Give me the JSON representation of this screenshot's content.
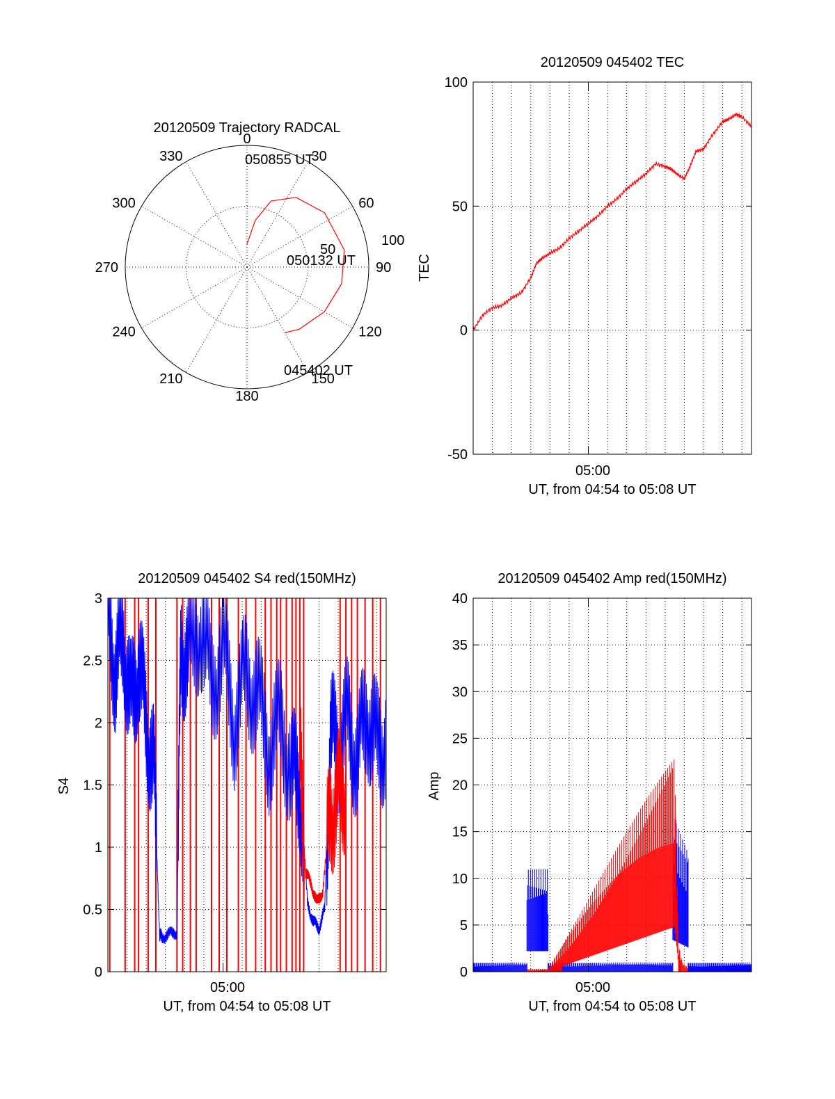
{
  "colors": {
    "red": "#ff0000",
    "blue": "#0000ff",
    "axis": "#000000"
  },
  "chart_data": [
    {
      "id": "polar",
      "type": "polar-trajectory",
      "title": "20120509 Trajectory RADCAL",
      "azimuth_labels": [
        "0",
        "30",
        "60",
        "90",
        "120",
        "150",
        "180",
        "210",
        "240",
        "270",
        "300",
        "330"
      ],
      "radius_labels": [
        "50",
        "100"
      ],
      "trajectory": {
        "series_color": "red",
        "points_az_el": [
          [
            0,
            73
          ],
          [
            10,
            55
          ],
          [
            20,
            38
          ],
          [
            35,
            27
          ],
          [
            55,
            20
          ],
          [
            80,
            17
          ],
          [
            100,
            19
          ],
          [
            120,
            24
          ],
          [
            140,
            30
          ],
          [
            150,
            34
          ]
        ]
      },
      "annotations": [
        {
          "text": "050855 UT",
          "az": 0,
          "el": 73
        },
        {
          "text": "050132 UT",
          "az": 80,
          "el": 17
        },
        {
          "text": "045402 UT",
          "az": 150,
          "el": 34
        }
      ]
    },
    {
      "id": "tec",
      "type": "line",
      "title": "20120509 045402 TEC",
      "ylabel": "TEC",
      "xlabel": "UT, from 04:54 to 05:08 UT",
      "xtick_label": "05:00",
      "ylim": [
        -50,
        100
      ],
      "yticks": [
        "100",
        "50",
        "0",
        "-50"
      ],
      "xlim_minutes": [
        0,
        14.5
      ],
      "grid": true,
      "series": [
        {
          "color": "red",
          "x_minutes": [
            0,
            0.5,
            1,
            1.5,
            2,
            2.5,
            3,
            3.3,
            3.6,
            4,
            4.5,
            5,
            5.5,
            6,
            6.5,
            7,
            7.5,
            8,
            8.5,
            9,
            9.5,
            10,
            10.3,
            10.6,
            11,
            11.3,
            11.6,
            12,
            12.5,
            13,
            13.3,
            13.7,
            14,
            14.5
          ],
          "y": [
            0,
            6,
            9,
            10,
            13,
            15,
            21,
            27,
            29,
            31,
            33,
            37,
            40,
            43,
            46,
            50,
            53,
            57,
            60,
            63,
            67,
            66,
            65,
            63,
            61,
            66,
            72,
            73,
            79,
            84,
            85,
            87,
            86,
            82
          ]
        }
      ]
    },
    {
      "id": "s4",
      "type": "line",
      "title": "20120509 045402 S4 red(150MHz)",
      "ylabel": "S4",
      "xlabel": "UT, from 04:54 to 05:08 UT",
      "xtick_label": "05:00",
      "ylim": [
        0,
        3
      ],
      "yticks": [
        "3",
        "2.5",
        "2",
        "1.5",
        "1",
        "0.5",
        "0"
      ],
      "xlim_minutes": [
        0,
        14.5
      ],
      "grid": true,
      "series": [
        {
          "color": "blue",
          "x_minutes": [
            0,
            0.4,
            0.8,
            1.2,
            1.6,
            2,
            2.4,
            2.7,
            2.8,
            3.2,
            3.6,
            3.8,
            4.2,
            4.8,
            5.4,
            6,
            6.6,
            7.2,
            7.8,
            8.4,
            9,
            9.6,
            10,
            10.4,
            10.7,
            11,
            11.3,
            11.6,
            12,
            12.5,
            13,
            13.5,
            14,
            14.5
          ],
          "y": [
            2.9,
            2.4,
            2.7,
            2.1,
            2.5,
            2.0,
            1.6,
            0.3,
            0.28,
            0.3,
            0.32,
            2.6,
            2.5,
            2.8,
            2.3,
            2.6,
            2.0,
            2.4,
            2.2,
            1.8,
            2.0,
            1.6,
            1.5,
            0.55,
            0.4,
            0.35,
            0.5,
            1.9,
            1.8,
            2.0,
            1.7,
            2.1,
            1.8,
            1.9
          ]
        },
        {
          "color": "red",
          "x_minutes": [
            10,
            10.3,
            10.6,
            10.9,
            11.2,
            11.6,
            12,
            12.4
          ],
          "y": [
            1.8,
            0.8,
            0.7,
            0.55,
            0.65,
            1.3,
            1.4,
            1.5
          ]
        }
      ],
      "red_spike_x_minutes": [
        0.1,
        0.9,
        1.4,
        1.6,
        2.1,
        2.5,
        3.6,
        3.9,
        4.3,
        4.6,
        5.4,
        5.8,
        6.2,
        6.8,
        7.2,
        7.7,
        8.2,
        8.5,
        8.8,
        9.0,
        9.3,
        9.6,
        9.8,
        10.0,
        10.2,
        12.1,
        12.4,
        12.7,
        13.0,
        13.4,
        13.8,
        14.2
      ]
    },
    {
      "id": "amp",
      "type": "line",
      "title": "20120509 045402 Amp red(150MHz)",
      "ylabel": "Amp",
      "xlabel": "UT, from 04:54 to 05:08 UT",
      "xtick_label": "05:00",
      "ylim": [
        0,
        40
      ],
      "yticks": [
        "40",
        "35",
        "30",
        "25",
        "20",
        "15",
        "10",
        "5",
        "0"
      ],
      "xlim_minutes": [
        0,
        14.5
      ],
      "grid": true,
      "series": [
        {
          "color": "blue",
          "x_minutes": [
            0,
            2.8,
            2.8,
            3.9,
            3.9,
            10.4,
            10.4,
            11.2,
            11.2,
            14.5
          ],
          "y": [
            1,
            1,
            11,
            11,
            1,
            1,
            17,
            13,
            1,
            1
          ]
        },
        {
          "color": "red",
          "x_minutes": [
            2.8,
            3.9,
            10.5,
            10.7,
            10.9,
            11.2
          ],
          "y": [
            0.3,
            0.3,
            24,
            3,
            1,
            0.5
          ]
        }
      ]
    }
  ]
}
